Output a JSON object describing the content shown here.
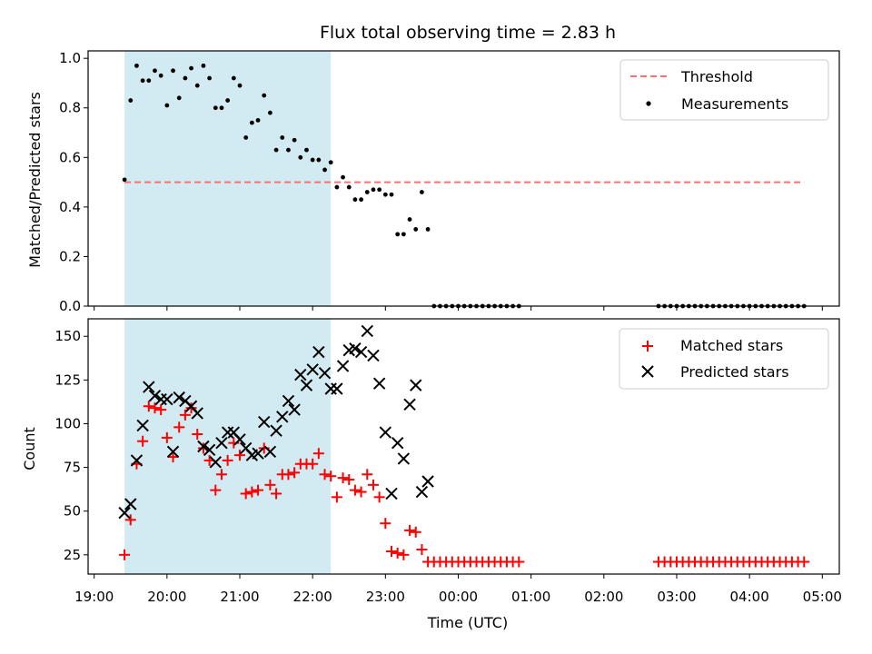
{
  "chart_data": [
    {
      "type": "scatter",
      "title": "Flux total observing time = 2.83 h",
      "xlabel": "",
      "ylabel": "Matched/Predicted stars",
      "ylim": [
        0,
        1.03
      ],
      "xlim": [
        "18:55",
        "05:14"
      ],
      "yticks": [
        "0.0",
        "0.2",
        "0.4",
        "0.6",
        "0.8",
        "1.0"
      ],
      "shaded_region": {
        "start": "19:25",
        "end": "22:15",
        "color": "#add8e6"
      },
      "legend": "top-right",
      "series": [
        {
          "name": "Threshold",
          "style": "dashed-line",
          "color": "#ff7070",
          "x": [
            "19:25",
            "04:45"
          ],
          "y": [
            0.5,
            0.5
          ]
        },
        {
          "name": "Measurements",
          "style": "dot",
          "color": "#000000",
          "x": [
            "19:25",
            "19:30",
            "19:35",
            "19:40",
            "19:45",
            "19:50",
            "19:55",
            "20:00",
            "20:05",
            "20:10",
            "20:15",
            "20:20",
            "20:25",
            "20:30",
            "20:35",
            "20:40",
            "20:45",
            "20:50",
            "20:55",
            "21:00",
            "21:05",
            "21:10",
            "21:15",
            "21:20",
            "21:25",
            "21:30",
            "21:35",
            "21:40",
            "21:45",
            "21:50",
            "21:55",
            "22:00",
            "22:05",
            "22:10",
            "22:15",
            "22:20",
            "22:25",
            "22:30",
            "22:35",
            "22:40",
            "22:45",
            "22:50",
            "22:55",
            "23:00",
            "23:05",
            "23:10",
            "23:15",
            "23:20",
            "23:25",
            "23:30",
            "23:35",
            "23:40",
            "23:45",
            "23:50",
            "23:55",
            "00:00",
            "00:05",
            "00:10",
            "00:15",
            "00:20",
            "00:25",
            "00:30",
            "00:35",
            "00:40",
            "00:45",
            "00:50",
            "02:45",
            "02:50",
            "02:55",
            "03:00",
            "03:05",
            "03:10",
            "03:15",
            "03:20",
            "03:25",
            "03:30",
            "03:35",
            "03:40",
            "03:45",
            "03:50",
            "03:55",
            "04:00",
            "04:05",
            "04:10",
            "04:15",
            "04:20",
            "04:25",
            "04:30",
            "04:35",
            "04:40",
            "04:45"
          ],
          "y": [
            0.51,
            0.83,
            0.97,
            0.91,
            0.91,
            0.95,
            0.93,
            0.81,
            0.95,
            0.84,
            0.92,
            0.96,
            0.89,
            0.97,
            0.92,
            0.8,
            0.8,
            0.83,
            0.92,
            0.89,
            0.68,
            0.74,
            0.75,
            0.85,
            0.78,
            0.63,
            0.68,
            0.63,
            0.67,
            0.6,
            0.63,
            0.59,
            0.59,
            0.55,
            0.58,
            0.48,
            0.52,
            0.48,
            0.43,
            0.43,
            0.46,
            0.47,
            0.47,
            0.45,
            0.45,
            0.29,
            0.29,
            0.35,
            0.31,
            0.46,
            0.31,
            0,
            0,
            0,
            0,
            0,
            0,
            0,
            0,
            0,
            0,
            0,
            0,
            0,
            0,
            0,
            0,
            0,
            0,
            0,
            0,
            0,
            0,
            0,
            0,
            0,
            0,
            0,
            0,
            0,
            0,
            0,
            0,
            0,
            0,
            0,
            0,
            0,
            0,
            0,
            0
          ]
        }
      ]
    },
    {
      "type": "scatter",
      "title": "",
      "xlabel": "Time (UTC)",
      "ylabel": "Count",
      "ylim": [
        14,
        160
      ],
      "xlim": [
        "18:55",
        "05:14"
      ],
      "yticks": [
        "25",
        "50",
        "75",
        "100",
        "125",
        "150"
      ],
      "xticks": [
        "19:00",
        "20:00",
        "21:00",
        "22:00",
        "23:00",
        "00:00",
        "01:00",
        "02:00",
        "03:00",
        "04:00",
        "05:00"
      ],
      "shaded_region": {
        "start": "19:25",
        "end": "22:15",
        "color": "#add8e6"
      },
      "legend": "top-right",
      "series": [
        {
          "name": "Matched stars",
          "style": "plus",
          "color": "#ff0000",
          "x": [
            "19:25",
            "19:30",
            "19:35",
            "19:40",
            "19:45",
            "19:50",
            "19:55",
            "20:00",
            "20:05",
            "20:10",
            "20:15",
            "20:20",
            "20:25",
            "20:30",
            "20:35",
            "20:40",
            "20:45",
            "20:50",
            "20:55",
            "21:00",
            "21:05",
            "21:10",
            "21:15",
            "21:20",
            "21:25",
            "21:30",
            "21:35",
            "21:40",
            "21:45",
            "21:50",
            "21:55",
            "22:00",
            "22:05",
            "22:10",
            "22:15",
            "22:20",
            "22:25",
            "22:30",
            "22:35",
            "22:40",
            "22:45",
            "22:50",
            "22:55",
            "23:00",
            "23:05",
            "23:10",
            "23:15",
            "23:20",
            "23:25",
            "23:30",
            "23:35",
            "23:40",
            "23:45",
            "23:50",
            "23:55",
            "00:00",
            "00:05",
            "00:10",
            "00:15",
            "00:20",
            "00:25",
            "00:30",
            "00:35",
            "00:40",
            "00:45",
            "00:50",
            "02:45",
            "02:50",
            "02:55",
            "03:00",
            "03:05",
            "03:10",
            "03:15",
            "03:20",
            "03:25",
            "03:30",
            "03:35",
            "03:40",
            "03:45",
            "03:50",
            "03:55",
            "04:00",
            "04:05",
            "04:10",
            "04:15",
            "04:20",
            "04:25",
            "04:30",
            "04:35",
            "04:40",
            "04:45"
          ],
          "y": [
            25,
            45,
            77,
            90,
            110,
            109,
            108,
            92,
            81,
            98,
            105,
            109,
            94,
            86,
            79,
            62,
            71,
            79,
            89,
            82,
            60,
            61,
            62,
            86,
            65,
            60,
            71,
            71,
            72,
            77,
            77,
            77,
            83,
            71,
            70,
            58,
            69,
            68,
            62,
            61,
            71,
            65,
            58,
            43,
            27,
            26,
            25,
            39,
            38,
            28,
            21,
            21,
            21,
            21,
            21,
            21,
            21,
            21,
            21,
            21,
            21,
            21,
            21,
            21,
            21,
            21,
            21,
            21,
            21,
            21,
            21,
            21,
            21,
            21,
            21,
            21,
            21,
            21,
            21,
            21,
            21,
            21,
            21,
            21,
            21,
            21,
            21,
            21,
            21,
            21,
            21
          ]
        },
        {
          "name": "Predicted stars",
          "style": "cross",
          "color": "#000000",
          "x": [
            "19:25",
            "19:30",
            "19:35",
            "19:40",
            "19:45",
            "19:50",
            "19:55",
            "20:00",
            "20:05",
            "20:10",
            "20:15",
            "20:20",
            "20:25",
            "20:30",
            "20:35",
            "20:40",
            "20:45",
            "20:50",
            "20:55",
            "21:00",
            "21:05",
            "21:10",
            "21:15",
            "21:20",
            "21:25",
            "21:30",
            "21:35",
            "21:40",
            "21:45",
            "21:50",
            "21:55",
            "22:00",
            "22:05",
            "22:10",
            "22:15",
            "22:20",
            "22:25",
            "22:30",
            "22:35",
            "22:40",
            "22:45",
            "22:50",
            "22:55",
            "23:00",
            "23:05",
            "23:10",
            "23:15",
            "23:20",
            "23:25",
            "23:30",
            "23:35"
          ],
          "y": [
            49,
            54,
            79,
            99,
            121,
            116,
            114,
            114,
            84,
            115,
            113,
            110,
            106,
            87,
            85,
            78,
            89,
            95,
            95,
            91,
            86,
            82,
            83,
            101,
            84,
            96,
            104,
            113,
            108,
            128,
            122,
            131,
            141,
            129,
            120,
            120,
            133,
            142,
            143,
            141,
            153,
            139,
            123,
            95,
            60,
            89,
            80,
            111,
            122,
            61,
            67
          ]
        }
      ]
    }
  ]
}
